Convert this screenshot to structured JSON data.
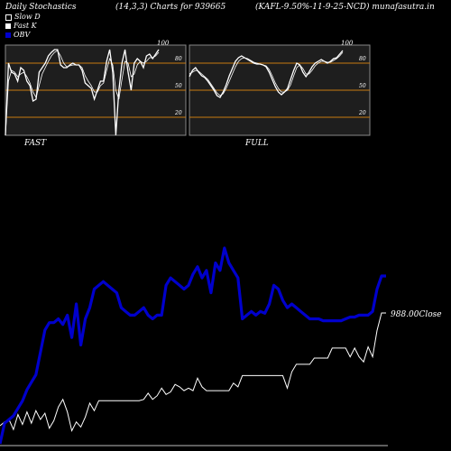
{
  "header": {
    "title": "Daily Stochastics",
    "params": "(14,3,3) Charts for 939665",
    "symbol": "(KAFL-9.50%-11-9-25-NCD) munafasutra.in"
  },
  "legend": [
    {
      "label": "Slow  D",
      "color": "#ffffff",
      "style": "outline"
    },
    {
      "label": "Fast K",
      "color": "#ffffff",
      "style": "filled"
    },
    {
      "label": "OBV",
      "color": "#0000cc",
      "style": "filled"
    }
  ],
  "colors": {
    "background": "#000000",
    "panel": "#1e1e1e",
    "level_line": "#c87a10",
    "obv": "#0000cc",
    "price": "#ffffff"
  },
  "chart_data": [
    {
      "type": "line",
      "panel_label": "FAST",
      "ylim": [
        0,
        100
      ],
      "levels": [
        80,
        50,
        20
      ],
      "level_labels": [
        "100",
        "80",
        "50",
        "20"
      ],
      "series": [
        {
          "name": "Fast K",
          "values": [
            0,
            80,
            70,
            68,
            60,
            75,
            72,
            60,
            55,
            38,
            40,
            70,
            75,
            80,
            88,
            92,
            95,
            95,
            78,
            75,
            75,
            78,
            80,
            78,
            78,
            72,
            58,
            55,
            52,
            40,
            50,
            60,
            60,
            82,
            95,
            70,
            0,
            50,
            80,
            95,
            70,
            50,
            80,
            85,
            82,
            75,
            88,
            90,
            85,
            90,
            95
          ]
        },
        {
          "name": "Slow  D",
          "values": [
            0,
            60,
            72,
            70,
            65,
            68,
            70,
            65,
            58,
            48,
            42,
            55,
            68,
            75,
            82,
            88,
            92,
            94,
            88,
            80,
            76,
            77,
            78,
            78,
            78,
            75,
            66,
            60,
            55,
            48,
            48,
            55,
            58,
            72,
            85,
            78,
            50,
            40,
            62,
            82,
            80,
            65,
            68,
            78,
            82,
            80,
            82,
            86,
            86,
            88,
            92
          ]
        }
      ]
    },
    {
      "type": "line",
      "panel_label": "FULL",
      "ylim": [
        0,
        100
      ],
      "levels": [
        80,
        50,
        20
      ],
      "level_labels": [
        "100",
        "80",
        "50",
        "20"
      ],
      "series": [
        {
          "name": "Fast K",
          "values": [
            65,
            72,
            75,
            70,
            66,
            64,
            60,
            55,
            50,
            44,
            42,
            48,
            56,
            66,
            74,
            82,
            86,
            88,
            86,
            84,
            82,
            80,
            79,
            79,
            78,
            76,
            70,
            62,
            54,
            48,
            45,
            48,
            52,
            62,
            72,
            80,
            78,
            70,
            65,
            70,
            76,
            80,
            82,
            84,
            82,
            80,
            82,
            85,
            86,
            90,
            94
          ]
        },
        {
          "name": "Slow  D",
          "values": [
            68,
            70,
            72,
            71,
            68,
            65,
            62,
            57,
            52,
            47,
            44,
            46,
            52,
            60,
            68,
            76,
            82,
            85,
            86,
            85,
            83,
            81,
            80,
            79,
            78,
            77,
            73,
            66,
            58,
            52,
            48,
            48,
            50,
            56,
            66,
            75,
            78,
            74,
            68,
            68,
            72,
            77,
            80,
            82,
            82,
            81,
            81,
            83,
            85,
            88,
            92
          ]
        }
      ]
    },
    {
      "type": "line",
      "close_label": "988.00Close",
      "series": [
        {
          "name": "OBV",
          "values": [
            -5,
            6,
            8,
            10,
            14,
            18,
            24,
            28,
            32,
            44,
            56,
            60,
            60,
            62,
            59,
            64,
            52,
            70,
            48,
            62,
            68,
            78,
            80,
            82,
            80,
            78,
            76,
            68,
            66,
            64,
            64,
            66,
            68,
            64,
            62,
            64,
            64,
            80,
            84,
            82,
            80,
            78,
            80,
            86,
            90,
            84,
            88,
            76,
            92,
            88,
            100,
            92,
            88,
            84,
            62,
            64,
            66,
            64,
            66,
            65,
            70,
            80,
            78,
            72,
            68,
            70,
            68,
            66,
            64,
            62,
            62,
            62,
            61,
            61,
            61,
            61,
            61,
            62,
            63,
            63,
            64,
            64,
            64,
            66,
            78,
            85,
            85
          ]
        },
        {
          "name": "Close",
          "values": [
            970.0,
            970.6,
            971.0,
            969.4,
            971.8,
            970.2,
            972.2,
            970.4,
            972.4,
            971.0,
            972.0,
            969.6,
            970.8,
            973.0,
            974.2,
            972.2,
            969.2,
            970.6,
            969.8,
            971.4,
            973.6,
            972.4,
            974.0,
            974.0,
            974.0,
            974.0,
            974.0,
            974.0,
            974.0,
            974.0,
            974.0,
            974.0,
            974.2,
            975.2,
            974.2,
            974.8,
            976.0,
            975.0,
            975.4,
            976.6,
            976.2,
            975.6,
            976.0,
            975.6,
            977.6,
            976.2,
            975.6,
            975.6,
            975.6,
            975.6,
            975.6,
            975.6,
            976.8,
            976.2,
            978.0,
            978.0,
            978.0,
            978.0,
            978.0,
            978.0,
            978.0,
            978.0,
            978.0,
            978.0,
            976.0,
            978.6,
            979.8,
            979.8,
            979.8,
            979.8,
            980.8,
            980.8,
            980.8,
            980.8,
            982.4,
            982.4,
            982.4,
            982.4,
            981.0,
            982.4,
            981.0,
            980.2,
            982.6,
            981.0,
            985.2,
            988.0,
            988.0
          ]
        }
      ]
    }
  ]
}
